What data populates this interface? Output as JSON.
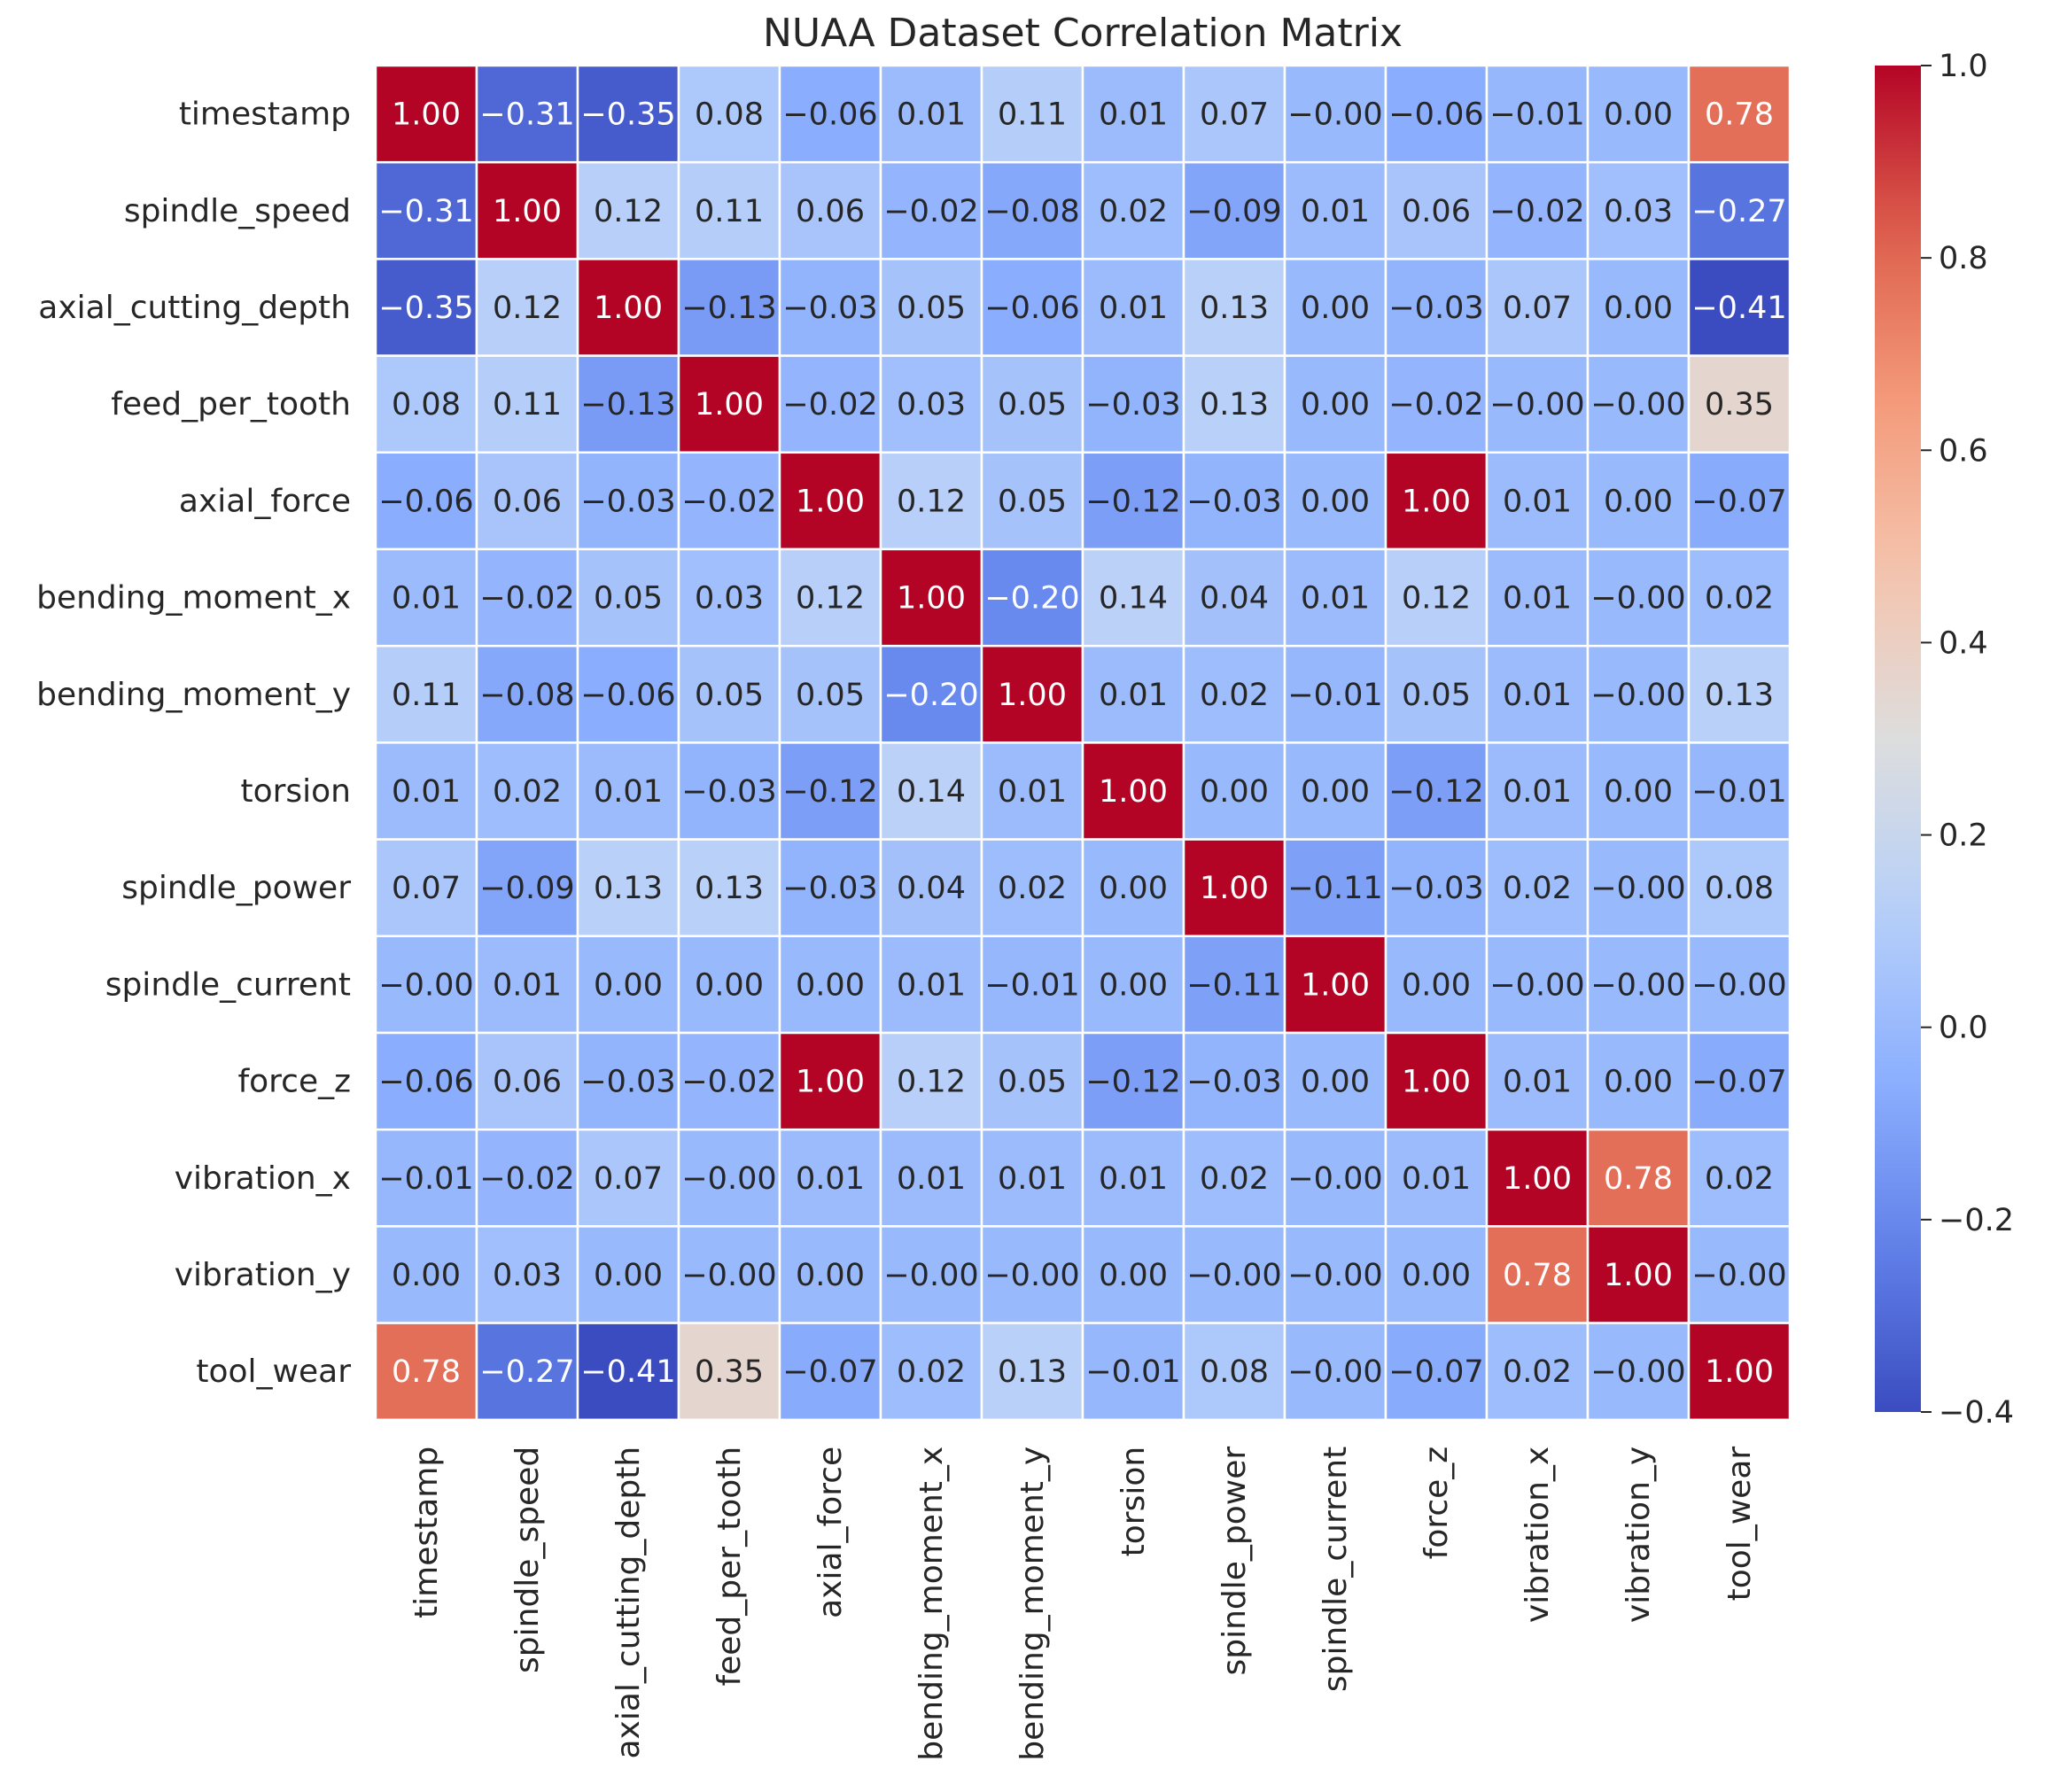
{
  "chart_data": {
    "type": "heatmap",
    "title": "NUAA Dataset Correlation Matrix",
    "xlabel": "",
    "ylabel": "",
    "row_labels": [
      "timestamp",
      "spindle_speed",
      "axial_cutting_depth",
      "feed_per_tooth",
      "axial_force",
      "bending_moment_x",
      "bending_moment_y",
      "torsion",
      "spindle_power",
      "spindle_current",
      "force_z",
      "vibration_x",
      "vibration_y",
      "tool_wear"
    ],
    "col_labels": [
      "timestamp",
      "spindle_speed",
      "axial_cutting_depth",
      "feed_per_tooth",
      "axial_force",
      "bending_moment_x",
      "bending_moment_y",
      "torsion",
      "spindle_power",
      "spindle_current",
      "force_z",
      "vibration_x",
      "vibration_y",
      "tool_wear"
    ],
    "values": [
      [
        1.0,
        -0.31,
        -0.35,
        0.08,
        -0.06,
        0.01,
        0.11,
        0.01,
        0.07,
        -0.0,
        -0.06,
        -0.01,
        0.0,
        0.78
      ],
      [
        -0.31,
        1.0,
        0.12,
        0.11,
        0.06,
        -0.02,
        -0.08,
        0.02,
        -0.09,
        0.01,
        0.06,
        -0.02,
        0.03,
        -0.27
      ],
      [
        -0.35,
        0.12,
        1.0,
        -0.13,
        -0.03,
        0.05,
        -0.06,
        0.01,
        0.13,
        0.0,
        -0.03,
        0.07,
        0.0,
        -0.41
      ],
      [
        0.08,
        0.11,
        -0.13,
        1.0,
        -0.02,
        0.03,
        0.05,
        -0.03,
        0.13,
        0.0,
        -0.02,
        -0.0,
        -0.0,
        0.35
      ],
      [
        -0.06,
        0.06,
        -0.03,
        -0.02,
        1.0,
        0.12,
        0.05,
        -0.12,
        -0.03,
        0.0,
        1.0,
        0.01,
        0.0,
        -0.07
      ],
      [
        0.01,
        -0.02,
        0.05,
        0.03,
        0.12,
        1.0,
        -0.2,
        0.14,
        0.04,
        0.01,
        0.12,
        0.01,
        -0.0,
        0.02
      ],
      [
        0.11,
        -0.08,
        -0.06,
        0.05,
        0.05,
        -0.2,
        1.0,
        0.01,
        0.02,
        -0.01,
        0.05,
        0.01,
        -0.0,
        0.13
      ],
      [
        0.01,
        0.02,
        0.01,
        -0.03,
        -0.12,
        0.14,
        0.01,
        1.0,
        0.0,
        0.0,
        -0.12,
        0.01,
        0.0,
        -0.01
      ],
      [
        0.07,
        -0.09,
        0.13,
        0.13,
        -0.03,
        0.04,
        0.02,
        0.0,
        1.0,
        -0.11,
        -0.03,
        0.02,
        -0.0,
        0.08
      ],
      [
        -0.0,
        0.01,
        0.0,
        0.0,
        0.0,
        0.01,
        -0.01,
        0.0,
        -0.11,
        1.0,
        0.0,
        -0.0,
        -0.0,
        -0.0
      ],
      [
        -0.06,
        0.06,
        -0.03,
        -0.02,
        1.0,
        0.12,
        0.05,
        -0.12,
        -0.03,
        0.0,
        1.0,
        0.01,
        0.0,
        -0.07
      ],
      [
        -0.01,
        -0.02,
        0.07,
        -0.0,
        0.01,
        0.01,
        0.01,
        0.01,
        0.02,
        -0.0,
        0.01,
        1.0,
        0.78,
        0.02
      ],
      [
        0.0,
        0.03,
        0.0,
        -0.0,
        0.0,
        -0.0,
        -0.0,
        0.0,
        -0.0,
        -0.0,
        0.0,
        0.78,
        1.0,
        -0.0
      ],
      [
        0.78,
        -0.27,
        -0.41,
        0.35,
        -0.07,
        0.02,
        0.13,
        -0.01,
        0.08,
        -0.0,
        -0.07,
        0.02,
        -0.0,
        1.0
      ]
    ],
    "value_format": "2 decimals, unicode minus sign",
    "colormap": "coolwarm",
    "vmin": -0.4,
    "vmax": 1.0,
    "annotations": true,
    "cell_lines": "white",
    "colorbar": {
      "position": "right",
      "ticks": [
        -0.4,
        -0.2,
        0.0,
        0.2,
        0.4,
        0.6,
        0.8,
        1.0
      ],
      "tick_labels": [
        "−0.4",
        "−0.2",
        "0.0",
        "0.2",
        "0.4",
        "0.6",
        "0.8",
        "1.0"
      ]
    },
    "grid": false,
    "legend": "none"
  },
  "colors": {
    "background": "#ffffff",
    "text": "#262626",
    "cell_text_dark": "#262626",
    "cell_text_light": "#ffffff",
    "cell_border": "#ffffff"
  }
}
